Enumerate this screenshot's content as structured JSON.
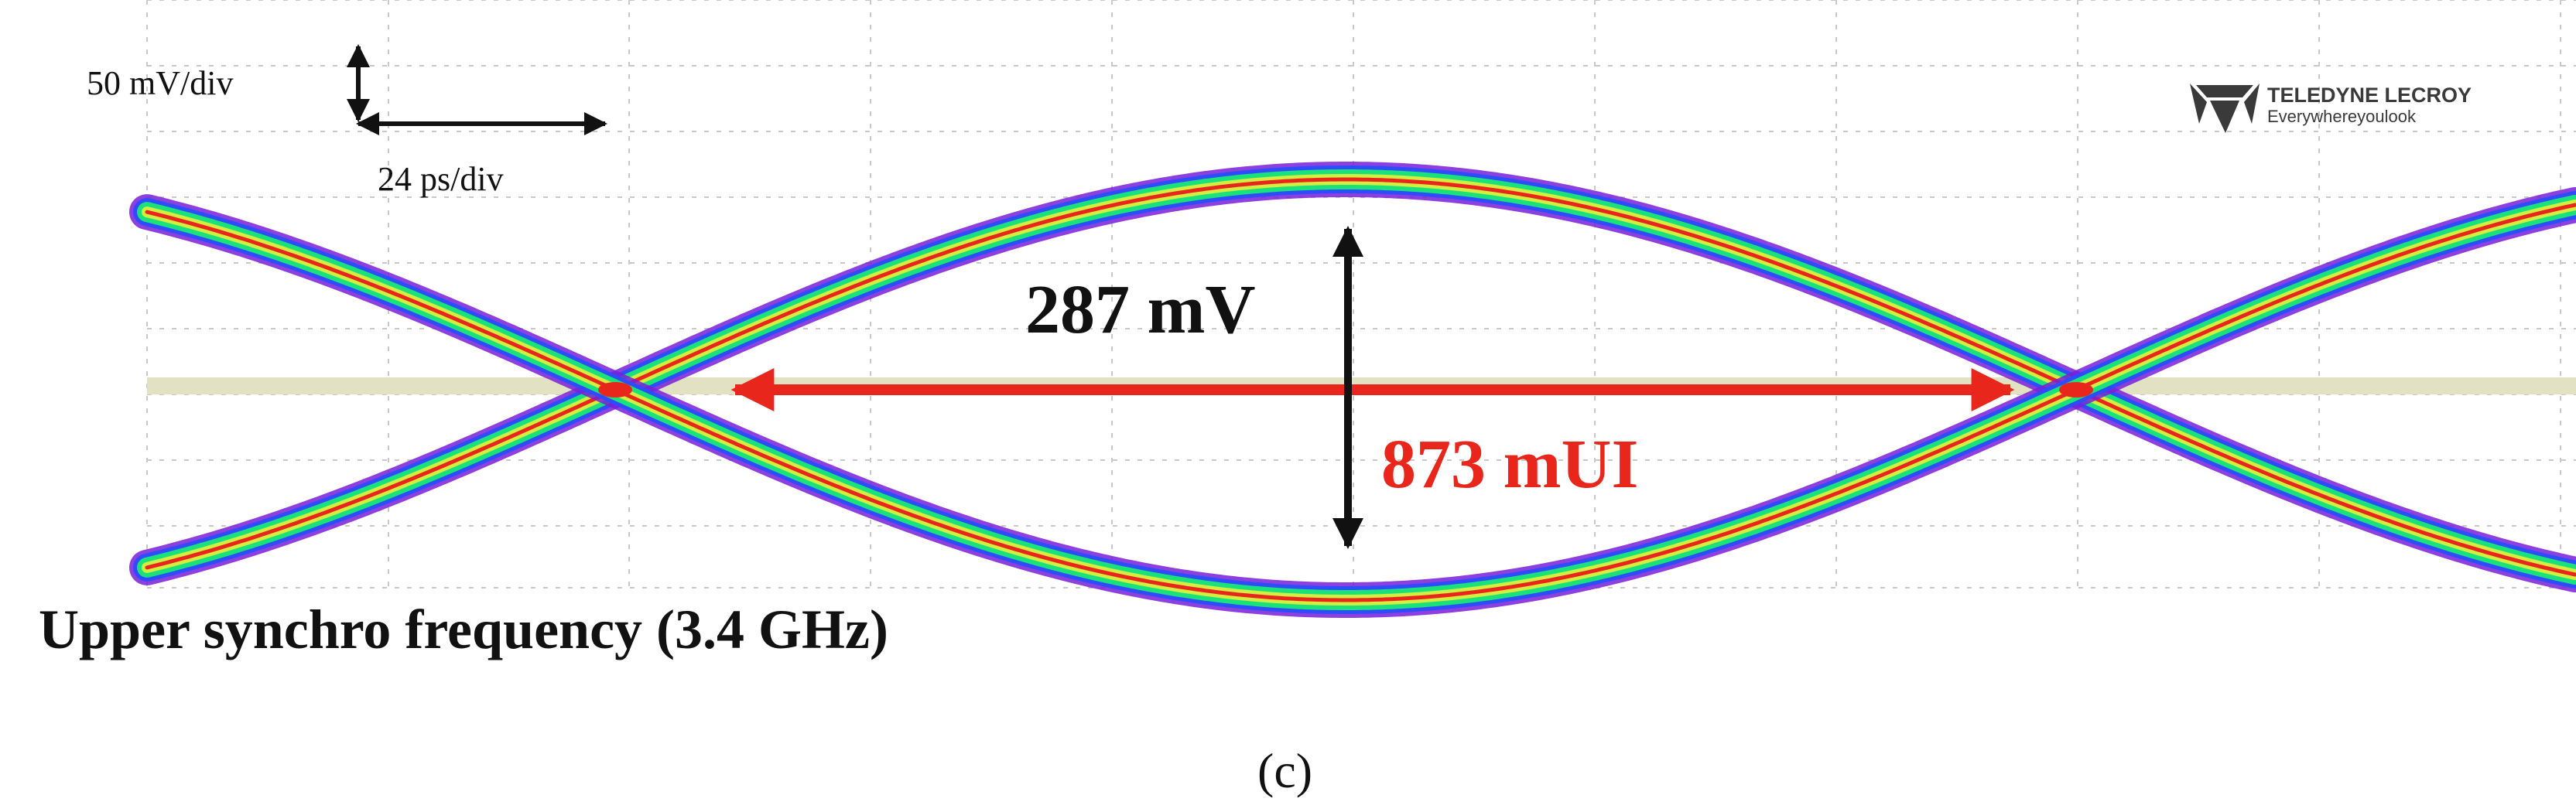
{
  "chart_data": {
    "type": "eye-diagram",
    "vertical_scale": "50 mV/div",
    "horizontal_scale": "24 ps/div",
    "eye_height": "287 mV",
    "eye_width": "873 mUI",
    "caption": "Upper synchro frequency (3.4 GHz)",
    "panel_label": "(c)",
    "brand": {
      "name": "TELEDYNE LECROY",
      "tagline": "Everywhereyoulook"
    },
    "colors": {
      "trace_outer": "#7a1fd8",
      "trace_blue": "#2a4cff",
      "trace_green": "#19e27a",
      "trace_yellow": "#e7ef3a",
      "trace_core": "#e8261c",
      "height_arrow": "#111111",
      "width_arrow": "#e8261c",
      "grid": "#c9c9c9",
      "reference_band": "#e2e2c2"
    }
  }
}
